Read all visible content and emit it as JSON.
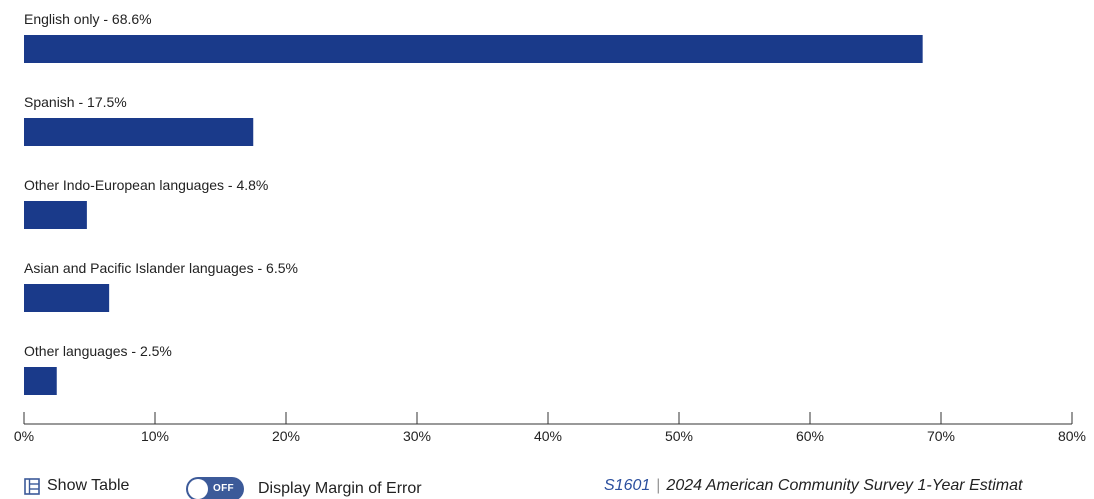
{
  "chart_data": {
    "type": "bar",
    "orientation": "horizontal",
    "categories": [
      "English only",
      "Spanish",
      "Other Indo-European languages",
      "Asian and Pacific Islander languages",
      "Other languages"
    ],
    "values": [
      68.6,
      17.5,
      4.8,
      6.5,
      2.5
    ],
    "labels": [
      "English only - 68.6%",
      "Spanish - 17.5%",
      "Other Indo-European languages - 4.8%",
      "Asian and Pacific Islander languages - 6.5%",
      "Other languages - 2.5%"
    ],
    "xlim": [
      0,
      80
    ],
    "xticks": [
      "0%",
      "10%",
      "20%",
      "30%",
      "40%",
      "50%",
      "60%",
      "70%",
      "80%"
    ],
    "bar_color": "#1a3a8a",
    "grid": false
  },
  "footer": {
    "show_table_label": "Show Table",
    "toggle_state": "OFF",
    "margin_of_error_label": "Display Margin of Error",
    "source_code": "S1601",
    "source_separator": "|",
    "source_text": "2024 American Community Survey 1-Year Estimat"
  },
  "colors": {
    "bar": "#1a3a8a",
    "toggle": "#3c5a99",
    "link": "#2b4f9e"
  }
}
